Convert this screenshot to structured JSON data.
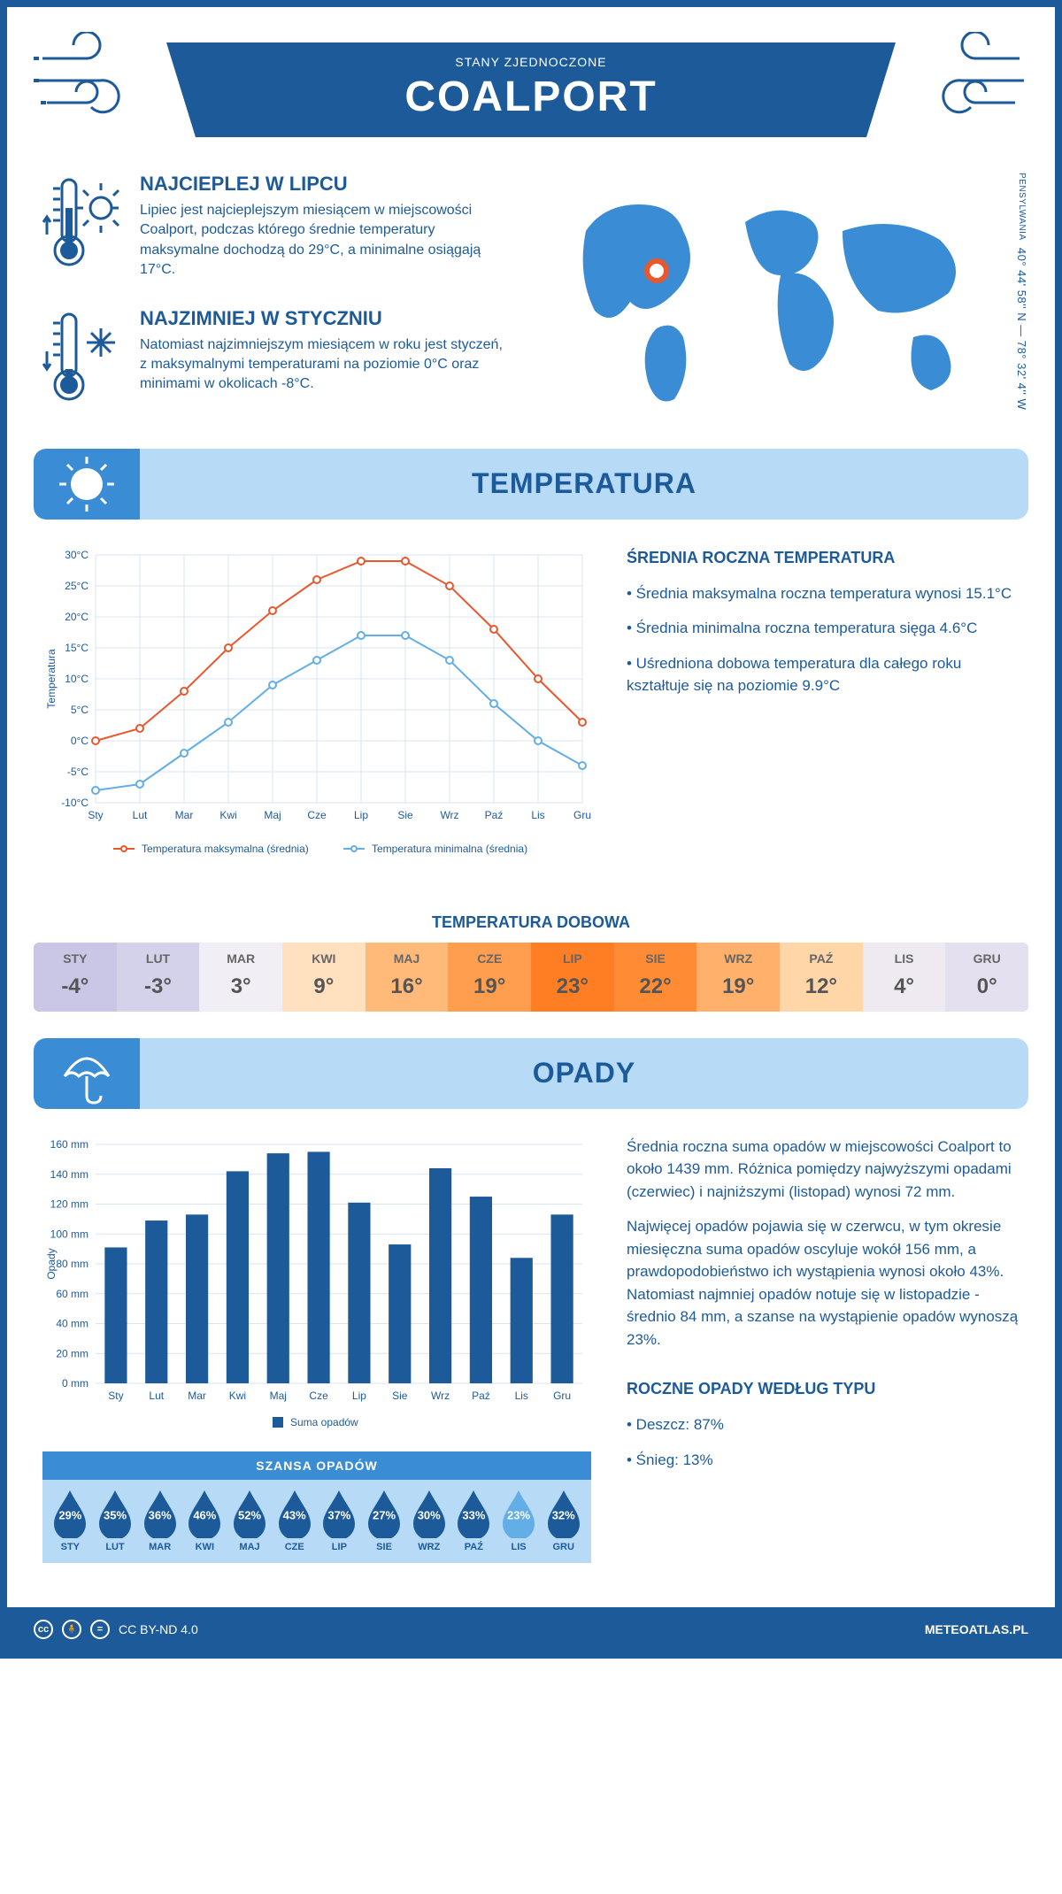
{
  "header": {
    "city": "COALPORT",
    "country": "STANY ZJEDNOCZONE"
  },
  "coords": {
    "text": "40° 44' 58'' N — 78° 32' 4'' W",
    "region": "PENSYLWANIA"
  },
  "facts": {
    "hot": {
      "title": "NAJCIEPLEJ W LIPCU",
      "text": "Lipiec jest najcieplejszym miesiącem w miejscowości Coalport, podczas którego średnie temperatury maksymalne dochodzą do 29°C, a minimalne osiągają 17°C."
    },
    "cold": {
      "title": "NAJZIMNIEJ W STYCZNIU",
      "text": "Natomiast najzimniejszym miesiącem w roku jest styczeń, z maksymalnymi temperaturami na poziomie 0°C oraz minimami w okolicach -8°C."
    }
  },
  "temperature": {
    "section_title": "TEMPERATURA",
    "yaxis_label": "Temperatura",
    "months": [
      "Sty",
      "Lut",
      "Mar",
      "Kwi",
      "Maj",
      "Cze",
      "Lip",
      "Sie",
      "Wrz",
      "Paź",
      "Lis",
      "Gru"
    ],
    "max": [
      0,
      2,
      8,
      15,
      21,
      26,
      29,
      29,
      25,
      18,
      10,
      3
    ],
    "min": [
      -8,
      -7,
      -2,
      3,
      9,
      13,
      17,
      17,
      13,
      6,
      0,
      -4
    ],
    "max_color": "#e8582e",
    "min_color": "#63aee6",
    "grid_color": "#d9e6f2",
    "ylim": [
      -10,
      30
    ],
    "ytick_step": 5,
    "legend_max": "Temperatura maksymalna (średnia)",
    "legend_min": "Temperatura minimalna (średnia)",
    "summary_title": "ŚREDNIA ROCZNA TEMPERATURA",
    "summary": [
      "• Średnia maksymalna roczna temperatura wynosi 15.1°C",
      "• Średnia minimalna roczna temperatura sięga 4.6°C",
      "• Uśredniona dobowa temperatura dla całego roku kształtuje się na poziomie 9.9°C"
    ],
    "daily_title": "TEMPERATURA DOBOWA",
    "daily": {
      "months": [
        "STY",
        "LUT",
        "MAR",
        "KWI",
        "MAJ",
        "CZE",
        "LIP",
        "SIE",
        "WRZ",
        "PAŹ",
        "LIS",
        "GRU"
      ],
      "values": [
        "-4°",
        "-3°",
        "3°",
        "9°",
        "16°",
        "19°",
        "23°",
        "22°",
        "19°",
        "12°",
        "4°",
        "0°"
      ],
      "colors": [
        "#c9c6e6",
        "#d4d1ea",
        "#f2eef5",
        "#ffe1bf",
        "#ffba7a",
        "#ff9e4f",
        "#ff7e23",
        "#ff8b34",
        "#ffb06a",
        "#ffd6a8",
        "#efeaf2",
        "#e4e0ef"
      ]
    }
  },
  "precipitation": {
    "section_title": "OPADY",
    "yaxis_label": "Opady",
    "months": [
      "Sty",
      "Lut",
      "Mar",
      "Kwi",
      "Maj",
      "Cze",
      "Lip",
      "Sie",
      "Wrz",
      "Paź",
      "Lis",
      "Gru"
    ],
    "values": [
      91,
      109,
      113,
      142,
      154,
      155,
      121,
      93,
      144,
      125,
      84,
      113
    ],
    "bar_color": "#1d5a9a",
    "grid_color": "#d9e6f2",
    "ylim": [
      0,
      160
    ],
    "ytick_step": 20,
    "legend": "Suma opadów",
    "text1": "Średnia roczna suma opadów w miejscowości Coalport to około 1439 mm. Różnica pomiędzy najwyższymi opadami (czerwiec) i najniższymi (listopad) wynosi 72 mm.",
    "text2": "Najwięcej opadów pojawia się w czerwcu, w tym okresie miesięczna suma opadów oscyluje wokół 156 mm, a prawdopodobieństwo ich wystąpienia wynosi około 43%. Natomiast najmniej opadów notuje się w listopadzie - średnio 84 mm, a szanse na wystąpienie opadów wynoszą 23%.",
    "chance_title": "SZANSA OPADÓW",
    "chance": {
      "months": [
        "STY",
        "LUT",
        "MAR",
        "KWI",
        "MAJ",
        "CZE",
        "LIP",
        "SIE",
        "WRZ",
        "PAŹ",
        "LIS",
        "GRU"
      ],
      "values": [
        "29%",
        "35%",
        "36%",
        "46%",
        "52%",
        "43%",
        "37%",
        "27%",
        "30%",
        "33%",
        "23%",
        "32%"
      ],
      "fills": [
        "#1d5a9a",
        "#1d5a9a",
        "#1d5a9a",
        "#1d5a9a",
        "#1d5a9a",
        "#1d5a9a",
        "#1d5a9a",
        "#1d5a9a",
        "#1d5a9a",
        "#1d5a9a",
        "#63aee6",
        "#1d5a9a"
      ]
    },
    "by_type_title": "ROCZNE OPADY WEDŁUG TYPU",
    "by_type": [
      "• Deszcz: 87%",
      "• Śnieg: 13%"
    ]
  },
  "footer": {
    "license": "CC BY-ND 4.0",
    "site": "METEOATLAS.PL"
  }
}
